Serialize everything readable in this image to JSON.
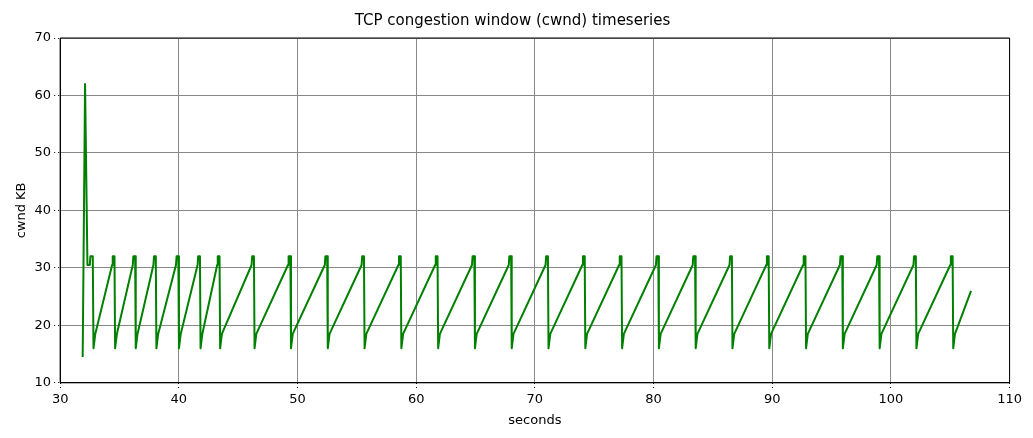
{
  "chart_data": {
    "type": "line",
    "title": "TCP congestion window (cwnd) timeseries",
    "xlabel": "seconds",
    "ylabel": "cwnd KB",
    "xlim": [
      30,
      110
    ],
    "xticks": [
      30,
      40,
      50,
      60,
      70,
      80,
      90,
      100,
      110
    ],
    "ylim": [
      10,
      70
    ],
    "yticks": [
      10,
      20,
      30,
      40,
      50,
      60,
      70
    ],
    "grid": true,
    "legend": false,
    "marker": "none",
    "line_style": "solid",
    "series": [
      {
        "color": "#008000",
        "x": [
          31.9,
          32.1,
          32.3,
          32.5,
          32.55,
          32.75,
          32.81,
          32.96,
          34.38,
          34.43,
          34.58,
          34.63,
          34.78,
          36.12,
          36.17,
          36.32,
          36.37,
          36.52,
          37.86,
          37.91,
          38.06,
          38.11,
          38.26,
          39.76,
          39.81,
          39.96,
          40.01,
          40.16,
          41.58,
          41.63,
          41.78,
          41.83,
          41.98,
          43.23,
          43.28,
          43.43,
          43.48,
          43.63,
          46.13,
          46.18,
          46.33,
          46.38,
          46.53,
          49.2,
          49.25,
          49.4,
          49.45,
          49.6,
          52.3,
          52.35,
          52.5,
          52.55,
          52.7,
          55.4,
          55.45,
          55.6,
          55.65,
          55.8,
          58.5,
          58.55,
          58.7,
          58.75,
          58.9,
          61.6,
          61.65,
          61.8,
          61.85,
          62,
          64.7,
          64.75,
          64.9,
          64.95,
          65.1,
          67.8,
          67.85,
          68,
          68.05,
          68.2,
          70.9,
          70.95,
          71.1,
          71.15,
          71.3,
          74,
          74.05,
          74.2,
          74.25,
          74.4,
          77.1,
          77.15,
          77.3,
          77.35,
          77.5,
          80.2,
          80.25,
          80.4,
          80.45,
          80.6,
          83.3,
          83.35,
          83.5,
          83.55,
          83.7,
          86.4,
          86.45,
          86.6,
          86.65,
          86.8,
          89.5,
          89.55,
          89.7,
          89.75,
          89.9,
          92.6,
          92.65,
          92.8,
          92.85,
          93,
          95.7,
          95.75,
          95.9,
          95.95,
          96.1,
          98.8,
          98.85,
          99,
          99.05,
          99.2,
          101.9,
          101.95,
          102.1,
          102.15,
          102.3,
          105,
          105.05,
          105.2,
          105.25,
          105.4,
          106.75
        ],
        "values": [
          14.5,
          62,
          30.5,
          30.5,
          32,
          32,
          16,
          18.5,
          30.5,
          32,
          32,
          16,
          18.5,
          30.5,
          32,
          32,
          16,
          18.5,
          30.5,
          32,
          32,
          16,
          18.5,
          30.5,
          32,
          32,
          16,
          18.5,
          30.5,
          32,
          32,
          16,
          18.5,
          30.5,
          32,
          32,
          16,
          18.5,
          30.5,
          32,
          32,
          16,
          18.5,
          30.5,
          32,
          32,
          16,
          18.5,
          30.5,
          32,
          32,
          16,
          18.5,
          30.5,
          32,
          32,
          16,
          18.5,
          30.5,
          32,
          32,
          16,
          18.5,
          30.5,
          32,
          32,
          16,
          18.5,
          30.5,
          32,
          32,
          16,
          18.5,
          30.5,
          32,
          32,
          16,
          18.5,
          30.5,
          32,
          32,
          16,
          18.5,
          30.5,
          32,
          32,
          16,
          18.5,
          30.5,
          32,
          32,
          16,
          18.5,
          30.5,
          32,
          32,
          16,
          18.5,
          30.5,
          32,
          32,
          16,
          18.5,
          30.5,
          32,
          32,
          16,
          18.5,
          30.5,
          32,
          32,
          16,
          18.5,
          30.5,
          32,
          32,
          16,
          18.5,
          30.5,
          32,
          32,
          16,
          18.5,
          30.5,
          32,
          32,
          16,
          18.5,
          30.5,
          32,
          32,
          16,
          18.5,
          30.5,
          32,
          32,
          16,
          18.5,
          26
        ]
      }
    ]
  }
}
